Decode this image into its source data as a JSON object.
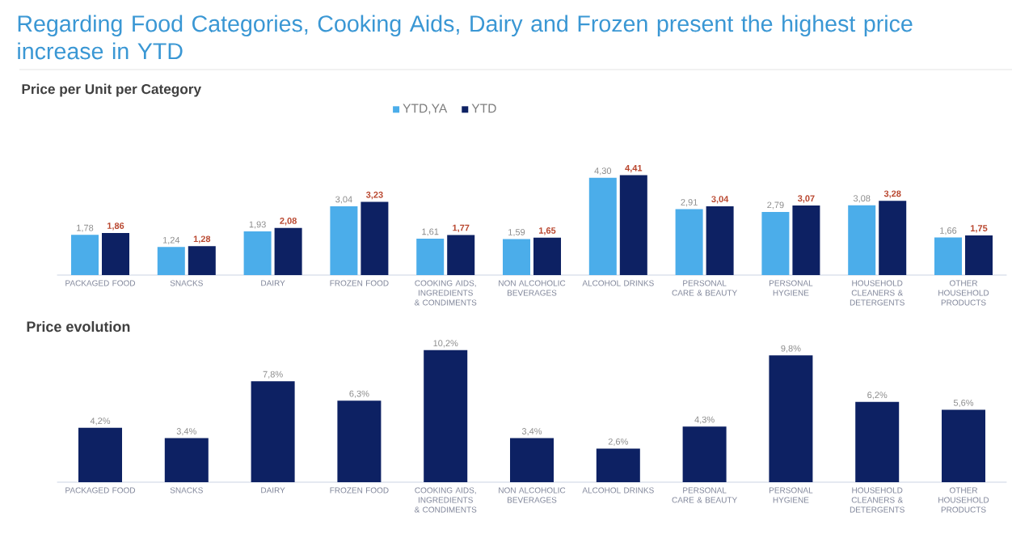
{
  "chart_data": [
    {
      "type": "bar",
      "title": "Regarding Food Categories, Cooking Aids, Dairy and Frozen present the highest price increase in YTD",
      "subtitle": "Price per Unit per Category",
      "categories": [
        "PACKAGED FOOD",
        "SNACKS",
        "DAIRY",
        "FROZEN FOOD",
        "COOKING AIDS, INGREDIENTS & CONDIMENTS",
        "NON ALCOHOLIC BEVERAGES",
        "ALCOHOL DRINKS",
        "PERSONAL CARE & BEAUTY",
        "PERSONAL HYGIENE",
        "HOUSEHOLD CLEANERS & DETERGENTS",
        "OTHER HOUSEHOLD PRODUCTS"
      ],
      "series": [
        {
          "name": "YTD,YA",
          "color": "#4badea",
          "values": [
            1.78,
            1.24,
            1.93,
            3.04,
            1.61,
            1.59,
            4.3,
            2.91,
            2.79,
            3.08,
            1.66
          ],
          "value_labels": [
            "1,78",
            "1,24",
            "1,93",
            "3,04",
            "1,61",
            "1,59",
            "4,30",
            "2,91",
            "2,79",
            "3,08",
            "1,66"
          ]
        },
        {
          "name": "YTD",
          "color": "#0d2163",
          "values": [
            1.86,
            1.28,
            2.08,
            3.23,
            1.77,
            1.65,
            4.41,
            3.04,
            3.07,
            3.28,
            1.75
          ],
          "value_labels": [
            "1,86",
            "1,28",
            "2,08",
            "3,23",
            "1,77",
            "1,65",
            "4,41",
            "3,04",
            "3,07",
            "3,28",
            "1,75"
          ]
        }
      ],
      "legend": "top"
    },
    {
      "type": "bar",
      "title": "Price evolution",
      "categories": [
        "PACKAGED FOOD",
        "SNACKS",
        "DAIRY",
        "FROZEN FOOD",
        "COOKING AIDS, INGREDIENTS & CONDIMENTS",
        "NON ALCOHOLIC BEVERAGES",
        "ALCOHOL DRINKS",
        "PERSONAL CARE & BEAUTY",
        "PERSONAL HYGIENE",
        "HOUSEHOLD CLEANERS & DETERGENTS",
        "OTHER HOUSEHOLD PRODUCTS"
      ],
      "values": [
        4.2,
        3.4,
        7.8,
        6.3,
        10.2,
        3.4,
        2.6,
        4.3,
        9.8,
        6.2,
        5.6
      ],
      "value_labels": [
        "4,2%",
        "3,4%",
        "7,8%",
        "6,3%",
        "10,2%",
        "3,4%",
        "2,6%",
        "4,3%",
        "9,8%",
        "6,2%",
        "5,6%"
      ],
      "color": "#0d2163"
    }
  ]
}
